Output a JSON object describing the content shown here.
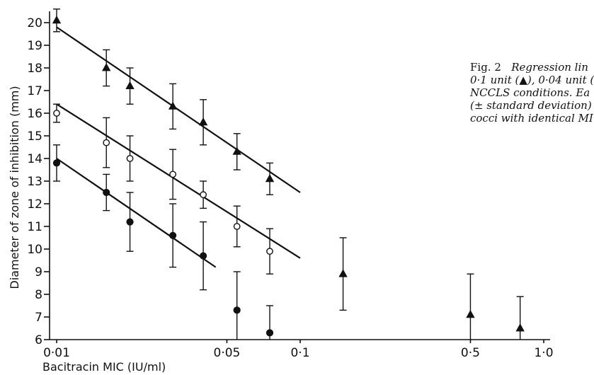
{
  "caption": {
    "label": "Fig. 2",
    "line1": "Regression lin",
    "line2": "0·1 unit (▲), 0·04 unit (",
    "line3": "NCCLS conditions. Ea",
    "line4": "(± standard deviation)",
    "line5": "cocci with identical MI"
  },
  "chart_data": {
    "type": "scatter",
    "xlabel": "Bacitracin MIC (IU/ml)",
    "ylabel": "Diameter of zone of inhibition (mm)",
    "x_scale": "log",
    "xlim": [
      0.01,
      1.0
    ],
    "ylim": [
      6,
      20
    ],
    "x_ticks": [
      {
        "value": 0.01,
        "label": "0·01"
      },
      {
        "value": 0.05,
        "label": "0·05"
      },
      {
        "value": 0.1,
        "label": "0·1"
      },
      {
        "value": 0.5,
        "label": "0·5"
      },
      {
        "value": 1.0,
        "label": "1·0"
      }
    ],
    "y_ticks": [
      6,
      7,
      8,
      9,
      10,
      11,
      12,
      13,
      14,
      15,
      16,
      17,
      18,
      19,
      20
    ],
    "grid": false,
    "series": [
      {
        "marker": "triangle",
        "points": [
          {
            "x": 0.01,
            "y": 20.1,
            "sd": 0.5
          },
          {
            "x": 0.016,
            "y": 18.0,
            "sd": 0.8
          },
          {
            "x": 0.02,
            "y": 17.2,
            "sd": 0.8
          },
          {
            "x": 0.03,
            "y": 16.3,
            "sd": 1.0
          },
          {
            "x": 0.04,
            "y": 15.6,
            "sd": 1.0
          },
          {
            "x": 0.055,
            "y": 14.3,
            "sd": 0.8
          },
          {
            "x": 0.075,
            "y": 13.1,
            "sd": 0.7
          },
          {
            "x": 0.15,
            "y": 8.9,
            "sd": 1.6
          },
          {
            "x": 0.5,
            "y": 7.1,
            "sd": 1.8
          },
          {
            "x": 0.8,
            "y": 6.5,
            "sd": 1.4
          }
        ],
        "regression": {
          "x": [
            0.01,
            0.1
          ],
          "y": [
            19.8,
            12.5
          ]
        }
      },
      {
        "marker": "open-circle",
        "points": [
          {
            "x": 0.01,
            "y": 16.0,
            "sd": 0.4
          },
          {
            "x": 0.016,
            "y": 14.7,
            "sd": 1.1
          },
          {
            "x": 0.02,
            "y": 14.0,
            "sd": 1.0
          },
          {
            "x": 0.03,
            "y": 13.3,
            "sd": 1.1
          },
          {
            "x": 0.04,
            "y": 12.4,
            "sd": 0.6
          },
          {
            "x": 0.055,
            "y": 11.0,
            "sd": 0.9
          },
          {
            "x": 0.075,
            "y": 9.9,
            "sd": 1.0
          }
        ],
        "regression": {
          "x": [
            0.01,
            0.1
          ],
          "y": [
            16.4,
            9.6
          ]
        }
      },
      {
        "marker": "filled-circle",
        "points": [
          {
            "x": 0.01,
            "y": 13.8,
            "sd": 0.8
          },
          {
            "x": 0.016,
            "y": 12.5,
            "sd": 0.8
          },
          {
            "x": 0.02,
            "y": 11.2,
            "sd": 1.3
          },
          {
            "x": 0.03,
            "y": 10.6,
            "sd": 1.4
          },
          {
            "x": 0.04,
            "y": 9.7,
            "sd": 1.5
          },
          {
            "x": 0.055,
            "y": 7.3,
            "sd": 1.7
          },
          {
            "x": 0.075,
            "y": 6.3,
            "sd": 1.2
          }
        ],
        "regression": {
          "x": [
            0.01,
            0.045
          ],
          "y": [
            14.0,
            9.2
          ]
        }
      }
    ]
  }
}
